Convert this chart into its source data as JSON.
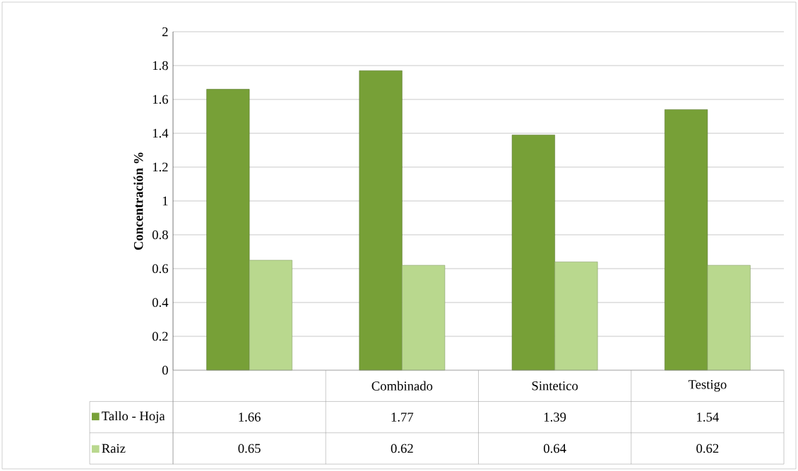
{
  "chart_data": {
    "type": "bar",
    "ylabel": "Concentración  %",
    "categories": [
      null,
      "Combinado",
      "Sintetico",
      "Testigo"
    ],
    "series": [
      {
        "name": "Tallo - Hoja",
        "color": "#77a037",
        "values": [
          1.66,
          1.77,
          1.39,
          1.54
        ]
      },
      {
        "name": "Raiz",
        "color": "#b9d88e",
        "values": [
          0.65,
          0.62,
          0.64,
          0.62
        ]
      }
    ],
    "ylim": [
      0,
      2
    ],
    "yticks": [
      0,
      0.2,
      0.4,
      0.6,
      0.8,
      1,
      1.2,
      1.4,
      1.6,
      1.8,
      2
    ],
    "grid": "y",
    "legend": "bottom left",
    "data_labels": true
  }
}
